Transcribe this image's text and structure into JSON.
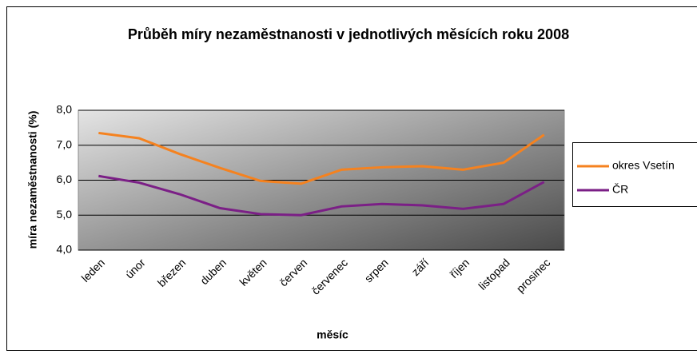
{
  "chart_data": {
    "type": "line",
    "title": "Průběh míry nezaměstnanosti v jednotlivých měsících roku 2008",
    "x_label": "měsíc",
    "y_label": "míra nezaměstnanosti (%)",
    "categories": [
      "leden",
      "únor",
      "březen",
      "duben",
      "květen",
      "červen",
      "červenec",
      "srpen",
      "září",
      "říjen",
      "listopad",
      "prosinec"
    ],
    "series": [
      {
        "name": "okres Vsetín",
        "color": "#f5821f",
        "values": [
          7.35,
          7.2,
          6.75,
          6.35,
          5.98,
          5.9,
          6.3,
          6.37,
          6.4,
          6.3,
          6.5,
          7.3
        ]
      },
      {
        "name": "ČR",
        "color": "#7b1f86",
        "values": [
          6.12,
          5.93,
          5.6,
          5.2,
          5.03,
          5.0,
          5.25,
          5.32,
          5.28,
          5.18,
          5.32,
          5.95
        ]
      }
    ],
    "ylim": [
      4,
      8
    ],
    "yticks": [
      {
        "value": 4,
        "label": "4,0"
      },
      {
        "value": 5,
        "label": "5,0"
      },
      {
        "value": 6,
        "label": "6,0"
      },
      {
        "value": 7,
        "label": "7,0"
      },
      {
        "value": 8,
        "label": "8,0"
      }
    ],
    "grid": true,
    "legend": "right"
  }
}
